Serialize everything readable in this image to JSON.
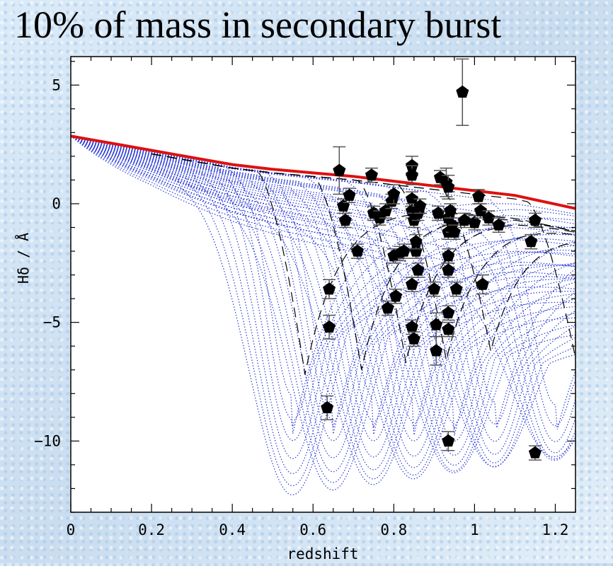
{
  "slide": {
    "title": "10% of mass in secondary burst"
  },
  "chart_data": {
    "type": "scatter",
    "xlabel": "redshift",
    "ylabel": "Hδ / Å",
    "xlim": [
      0,
      1.25
    ],
    "ylim": [
      -13,
      6.2
    ],
    "xticks": [
      0,
      0.2,
      0.4,
      0.6,
      0.8,
      1,
      1.2
    ],
    "xtick_labels": [
      "0",
      "0.2",
      "0.4",
      "0.6",
      "0.8",
      "1",
      "1.2"
    ],
    "yticks": [
      5,
      0,
      -5,
      -10
    ],
    "ytick_labels": [
      "5",
      "0",
      "−5",
      "−10"
    ],
    "grid": false,
    "colors": {
      "base_track": "#dd1111",
      "burst_tracks": "#2b3bd6",
      "dashed_tracks": "#000000",
      "points": "#000000",
      "errorbars": "#555555"
    },
    "base_track": {
      "x": [
        0,
        0.1,
        0.2,
        0.3,
        0.4,
        0.5,
        0.6,
        0.7,
        0.8,
        0.9,
        1.0,
        1.1,
        1.25
      ],
      "y": [
        2.85,
        2.55,
        2.25,
        1.95,
        1.65,
        1.45,
        1.3,
        1.15,
        0.95,
        0.75,
        0.55,
        0.35,
        -0.2
      ]
    },
    "burst_track_minima": [
      {
        "x": 0.55,
        "y": -10.9
      },
      {
        "x": 0.65,
        "y": -10.9
      },
      {
        "x": 0.75,
        "y": -10.9
      },
      {
        "x": 0.85,
        "y": -10.9
      },
      {
        "x": 0.95,
        "y": -10.9
      },
      {
        "x": 1.05,
        "y": -10.9
      },
      {
        "x": 1.2,
        "y": -10.9
      }
    ],
    "points": [
      {
        "x": 0.665,
        "y": 1.4,
        "err": 1.0
      },
      {
        "x": 0.675,
        "y": -0.1,
        "err": 0.3
      },
      {
        "x": 0.68,
        "y": -0.7,
        "err": 0.3
      },
      {
        "x": 0.69,
        "y": 0.35,
        "err": 0.3
      },
      {
        "x": 0.64,
        "y": -3.6,
        "err": 0.4
      },
      {
        "x": 0.64,
        "y": -5.2,
        "err": 0.5
      },
      {
        "x": 0.635,
        "y": -8.6,
        "err": 0.5
      },
      {
        "x": 0.71,
        "y": -2.0,
        "err": 0.3
      },
      {
        "x": 0.745,
        "y": 1.2,
        "err": 0.3
      },
      {
        "x": 0.75,
        "y": -0.4,
        "err": 0.3
      },
      {
        "x": 0.765,
        "y": -0.6,
        "err": 0.3
      },
      {
        "x": 0.78,
        "y": -0.3,
        "err": 0.3
      },
      {
        "x": 0.785,
        "y": -4.4,
        "err": 0.3
      },
      {
        "x": 0.795,
        "y": 0.1,
        "err": 0.3
      },
      {
        "x": 0.8,
        "y": 0.4,
        "err": 0.4
      },
      {
        "x": 0.8,
        "y": -2.2,
        "err": 0.3
      },
      {
        "x": 0.805,
        "y": -3.9,
        "err": 0.3
      },
      {
        "x": 0.815,
        "y": -2.1,
        "err": 0.3
      },
      {
        "x": 0.825,
        "y": -2.0,
        "err": 0.3
      },
      {
        "x": 0.845,
        "y": 1.6,
        "err": 0.4
      },
      {
        "x": 0.845,
        "y": 1.2,
        "err": 0.4
      },
      {
        "x": 0.845,
        "y": 0.2,
        "err": 0.3
      },
      {
        "x": 0.845,
        "y": -0.3,
        "err": 0.3
      },
      {
        "x": 0.85,
        "y": -0.7,
        "err": 0.3
      },
      {
        "x": 0.845,
        "y": -3.4,
        "err": 0.3
      },
      {
        "x": 0.845,
        "y": -5.2,
        "err": 0.3
      },
      {
        "x": 0.85,
        "y": -5.7,
        "err": 0.3
      },
      {
        "x": 0.855,
        "y": -2.0,
        "err": 0.3
      },
      {
        "x": 0.855,
        "y": -1.6,
        "err": 0.3
      },
      {
        "x": 0.86,
        "y": -2.8,
        "err": 0.3
      },
      {
        "x": 0.86,
        "y": -0.4,
        "err": 0.3
      },
      {
        "x": 0.865,
        "y": -0.1,
        "err": 0.3
      },
      {
        "x": 0.9,
        "y": -3.6,
        "err": 0.3
      },
      {
        "x": 0.905,
        "y": -5.1,
        "err": 0.5
      },
      {
        "x": 0.905,
        "y": -6.2,
        "err": 0.6
      },
      {
        "x": 0.91,
        "y": -0.4,
        "err": 0.3
      },
      {
        "x": 0.915,
        "y": 1.1,
        "err": 0.3
      },
      {
        "x": 0.93,
        "y": 0.9,
        "err": 0.6
      },
      {
        "x": 0.935,
        "y": 0.7,
        "err": 0.5
      },
      {
        "x": 0.935,
        "y": -0.6,
        "err": 0.3
      },
      {
        "x": 0.935,
        "y": -1.2,
        "err": 0.3
      },
      {
        "x": 0.935,
        "y": -2.2,
        "err": 0.3
      },
      {
        "x": 0.935,
        "y": -2.8,
        "err": 0.3
      },
      {
        "x": 0.935,
        "y": -4.6,
        "err": 0.3
      },
      {
        "x": 0.935,
        "y": -5.3,
        "err": 0.3
      },
      {
        "x": 0.935,
        "y": -10.0,
        "err": 0.4
      },
      {
        "x": 0.94,
        "y": -0.3,
        "err": 0.3
      },
      {
        "x": 0.945,
        "y": -0.9,
        "err": 0.3
      },
      {
        "x": 0.95,
        "y": -1.2,
        "err": 0.3
      },
      {
        "x": 0.955,
        "y": -3.6,
        "err": 0.3
      },
      {
        "x": 0.97,
        "y": 4.7,
        "err": 1.4
      },
      {
        "x": 0.975,
        "y": -0.7,
        "err": 0.3
      },
      {
        "x": 1.0,
        "y": -0.8,
        "err": 0.3
      },
      {
        "x": 1.01,
        "y": 0.3,
        "err": 0.3
      },
      {
        "x": 1.015,
        "y": -0.3,
        "err": 0.3
      },
      {
        "x": 1.02,
        "y": -3.4,
        "err": 0.4
      },
      {
        "x": 1.035,
        "y": -0.6,
        "err": 0.3
      },
      {
        "x": 1.06,
        "y": -0.9,
        "err": 0.3
      },
      {
        "x": 1.14,
        "y": -1.6,
        "err": 0.3
      },
      {
        "x": 1.15,
        "y": -0.7,
        "err": 0.3
      },
      {
        "x": 1.15,
        "y": -10.5,
        "err": 0.3
      }
    ]
  }
}
